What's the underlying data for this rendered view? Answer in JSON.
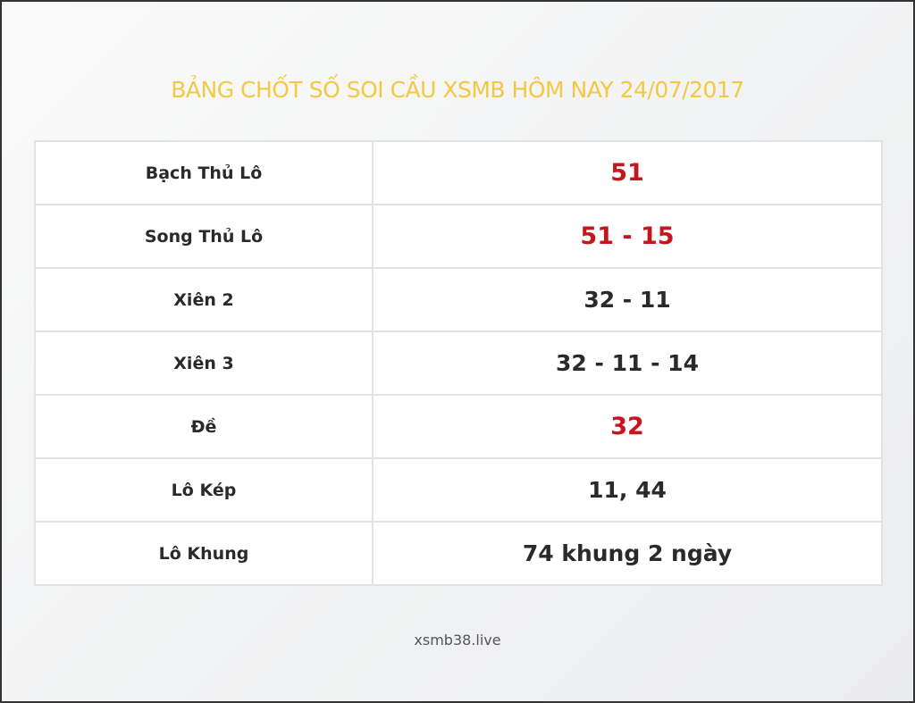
{
  "title": "BẢNG CHỐT SỐ SOI CẦU XSMB HÔM NAY 24/07/2017",
  "rows": [
    {
      "label": "Bạch Thủ Lô",
      "value": "51",
      "highlight": true
    },
    {
      "label": "Song Thủ Lô",
      "value": "51 - 15",
      "highlight": true
    },
    {
      "label": "Xiên 2",
      "value": "32 - 11",
      "highlight": false
    },
    {
      "label": "Xiên 3",
      "value": "32 - 11 - 14",
      "highlight": false
    },
    {
      "label": "Đề",
      "value": "32",
      "highlight": true
    },
    {
      "label": "Lô Kép",
      "value": "11, 44",
      "highlight": false
    },
    {
      "label": "Lô Khung",
      "value": "74 khung 2 ngày",
      "highlight": false
    }
  ],
  "footer": "xsmb38.live",
  "colors": {
    "title": "#f5c842",
    "highlight": "#c4161c",
    "text": "#2a2a2a"
  }
}
